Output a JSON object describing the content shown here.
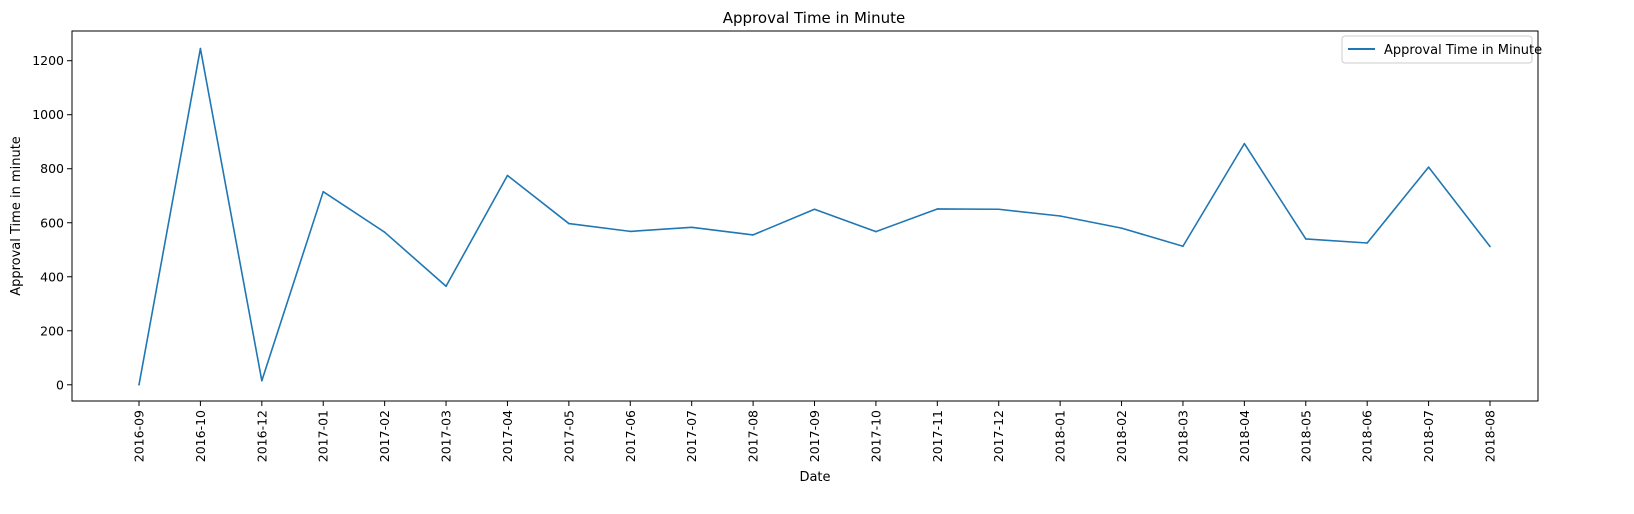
{
  "chart_data": {
    "type": "line",
    "title": "Approval Time in Minute",
    "xlabel": "Date",
    "ylabel": "Approval Time in minute",
    "categories": [
      "2016-09",
      "2016-10",
      "2016-12",
      "2017-01",
      "2017-02",
      "2017-03",
      "2017-04",
      "2017-05",
      "2017-06",
      "2017-07",
      "2017-08",
      "2017-09",
      "2017-10",
      "2017-11",
      "2017-12",
      "2018-01",
      "2018-02",
      "2018-03",
      "2018-04",
      "2018-05",
      "2018-06",
      "2018-07",
      "2018-08"
    ],
    "series": [
      {
        "name": "Approval Time in Minute",
        "color": "#1f77b4",
        "values": [
          0,
          1245,
          15,
          715,
          565,
          365,
          775,
          597,
          568,
          583,
          555,
          650,
          567,
          651,
          650,
          625,
          580,
          513,
          893,
          540,
          525,
          806,
          512
        ]
      }
    ],
    "ylim": [
      -60,
      1310
    ],
    "yticks": [
      0,
      200,
      400,
      600,
      800,
      1000,
      1200
    ],
    "grid": false,
    "legend_position": "top-right"
  }
}
